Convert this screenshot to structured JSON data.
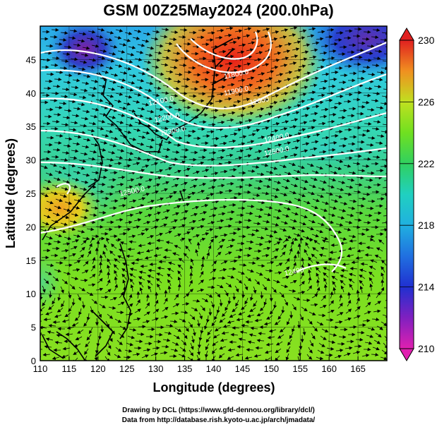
{
  "title": "GSM 00Z25May2024 (200.0hPa)",
  "axes": {
    "xlabel": "Longitude (degrees)",
    "ylabel": "Latitude  (degrees)",
    "xticks": [
      110,
      115,
      120,
      125,
      130,
      135,
      140,
      145,
      150,
      155,
      160,
      165
    ],
    "yticks": [
      0,
      5,
      10,
      15,
      20,
      25,
      30,
      35,
      40,
      45
    ],
    "xlim": [
      110,
      170
    ],
    "ylim": [
      0,
      50
    ]
  },
  "colorbar": {
    "ticks": [
      210,
      214,
      218,
      222,
      226,
      230
    ],
    "range": [
      210,
      230
    ],
    "colors": [
      "#e020b0",
      "#8020c0",
      "#2030d0",
      "#2090e0",
      "#20d0e0",
      "#30d060",
      "#70e020",
      "#b0e020",
      "#e0d020",
      "#f08020",
      "#e02020"
    ]
  },
  "contour_labels": [
    {
      "text": "11800.0",
      "lon": 144,
      "lat": 42.5
    },
    {
      "text": "11900.0",
      "lon": 144,
      "lat": 40
    },
    {
      "text": "12000",
      "lon": 148,
      "lat": 38.5
    },
    {
      "text": "12100.0",
      "lon": 131,
      "lat": 38.5
    },
    {
      "text": "12200.0",
      "lon": 132,
      "lat": 36
    },
    {
      "text": "12300.0",
      "lon": 133,
      "lat": 34
    },
    {
      "text": "12400.0",
      "lon": 151,
      "lat": 33
    },
    {
      "text": "12500.0",
      "lon": 151,
      "lat": 31
    },
    {
      "text": "12500.0",
      "lon": 126,
      "lat": 25
    },
    {
      "text": "12400",
      "lon": 154,
      "lat": 13
    }
  ],
  "credits": {
    "line1": "Drawing by DCL (https://www.gfd-dennou.org/library/dcl/)",
    "line2": "Data from http://database.rish.kyoto-u.ac.jp/arch/jmadata/"
  }
}
